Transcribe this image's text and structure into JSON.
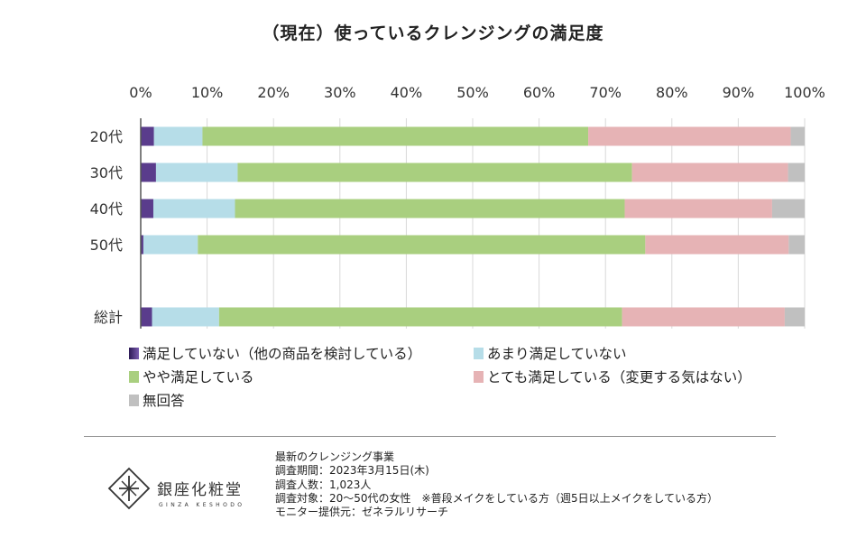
{
  "chart_data": {
    "type": "bar",
    "orientation": "horizontal",
    "stacked": "percent",
    "title": "（現在）使っているクレンジングの満足度",
    "x_ticks": [
      "0%",
      "10%",
      "20%",
      "30%",
      "40%",
      "50%",
      "60%",
      "70%",
      "80%",
      "90%",
      "100%"
    ],
    "xlim": [
      0,
      100
    ],
    "categories": [
      "20代",
      "30代",
      "40代",
      "50代",
      "総計"
    ],
    "series": [
      {
        "name": "満足していない（他の商品を検討している）",
        "color": "#5a3c8c",
        "values": [
          2.0,
          2.3,
          1.9,
          0.4,
          1.7
        ]
      },
      {
        "name": "あまり満足していない",
        "color": "#b6dde8",
        "values": [
          7.3,
          12.3,
          12.3,
          8.2,
          10.1
        ]
      },
      {
        "name": "やや満足している",
        "color": "#a9cf7f",
        "values": [
          58.1,
          59.4,
          58.7,
          67.4,
          60.7
        ]
      },
      {
        "name": "とても満足している（変更する気はない）",
        "color": "#e6b3b5",
        "values": [
          30.5,
          23.5,
          22.2,
          21.6,
          24.5
        ]
      },
      {
        "name": "無回答",
        "color": "#c0c0c0",
        "values": [
          2.1,
          2.5,
          4.9,
          2.4,
          3.0
        ]
      }
    ],
    "legend_position": "bottom"
  },
  "logo": {
    "name": "銀座化粧堂",
    "subtitle": "GINZA KESHODO"
  },
  "notes": [
    "最新のクレンジング事業",
    "調査期間：2023年3月15日(木)",
    "調査人数：1,023人",
    "調査対象：20～50代の女性　※普段メイクをしている方（週5日以上メイクをしている方）",
    "モニター提供元：ゼネラルリサーチ"
  ]
}
